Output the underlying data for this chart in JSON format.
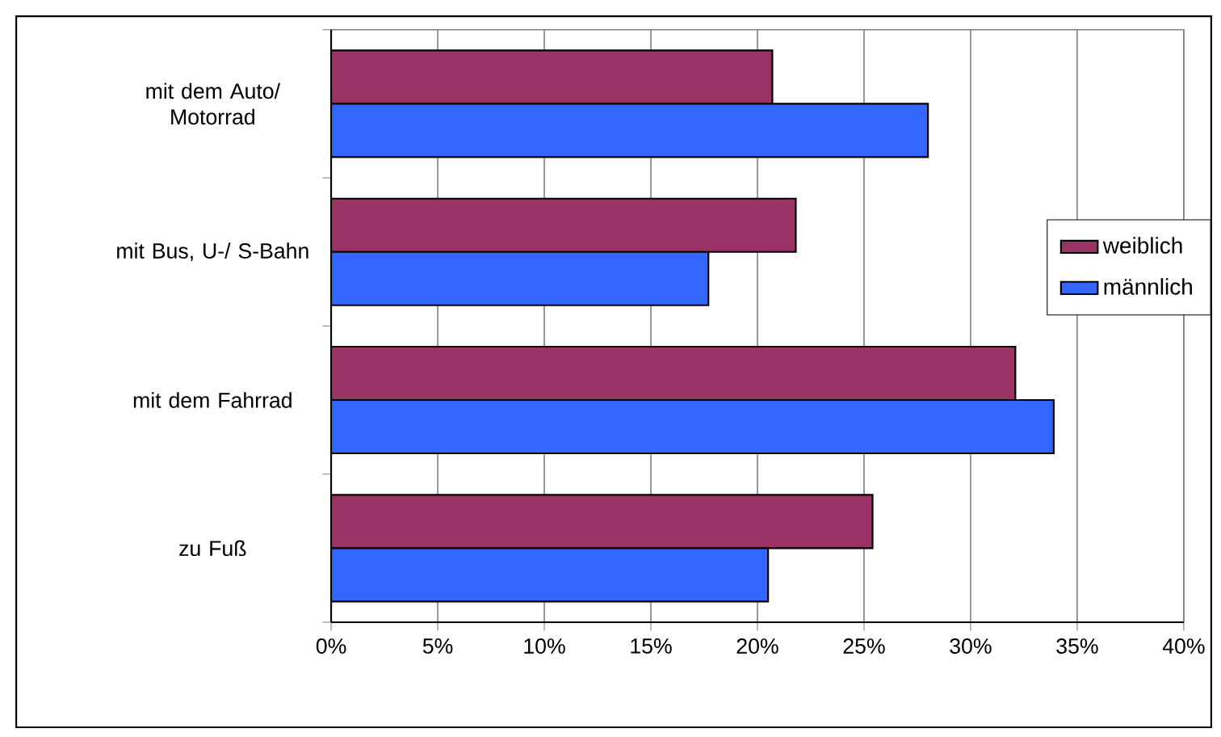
{
  "chart_data": {
    "type": "bar",
    "orientation": "horizontal",
    "categories": [
      "mit dem Auto/ Motorrad",
      "mit Bus, U-/ S-Bahn",
      "mit dem Fahrrad",
      "zu Fuß"
    ],
    "series": [
      {
        "name": "weiblich",
        "color": "#993366",
        "values": [
          20.7,
          21.8,
          32.1,
          25.4
        ]
      },
      {
        "name": "männlich",
        "color": "#3366ff",
        "values": [
          28.0,
          17.7,
          33.9,
          20.5
        ]
      }
    ],
    "xlim": [
      0,
      40
    ],
    "xticks": [
      {
        "value": 0,
        "label": "0%"
      },
      {
        "value": 5,
        "label": "5%"
      },
      {
        "value": 10,
        "label": "10%"
      },
      {
        "value": 15,
        "label": "15%"
      },
      {
        "value": 20,
        "label": "20%"
      },
      {
        "value": 25,
        "label": "25%"
      },
      {
        "value": 30,
        "label": "30%"
      },
      {
        "value": 35,
        "label": "35%"
      },
      {
        "value": 40,
        "label": "40%"
      }
    ],
    "grid": "x",
    "legend": "right"
  }
}
